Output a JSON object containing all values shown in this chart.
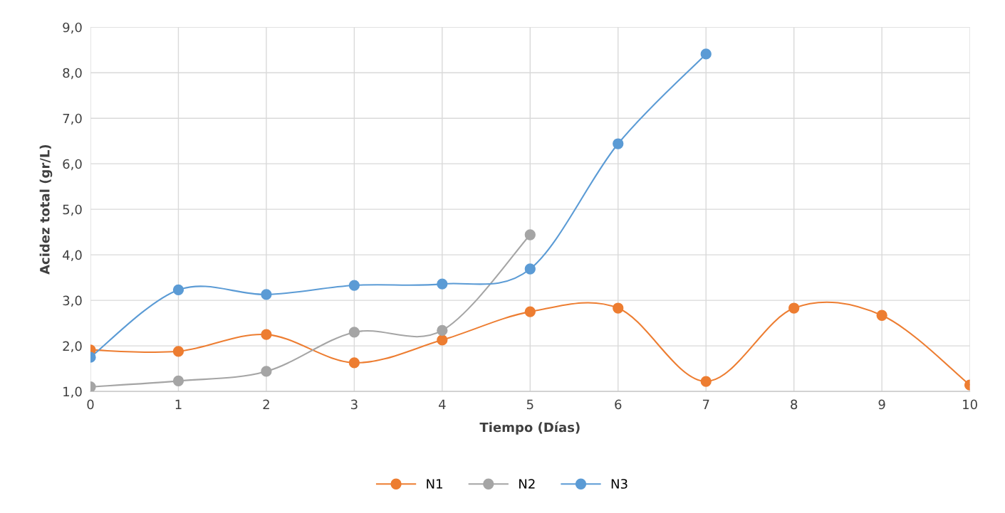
{
  "chart_data": {
    "type": "line",
    "xlabel": "Tiempo (Días)",
    "ylabel": "Acidez total (gr/L)",
    "xlim": [
      0,
      10
    ],
    "xticks": [
      0,
      1,
      2,
      3,
      4,
      5,
      6,
      7,
      8,
      9,
      10
    ],
    "ylim": [
      1.0,
      9.0
    ],
    "yticks": [
      {
        "value": 1.0,
        "label": "1,0"
      },
      {
        "value": 2.0,
        "label": "2,0"
      },
      {
        "value": 3.0,
        "label": "3,0"
      },
      {
        "value": 4.0,
        "label": "4,0"
      },
      {
        "value": 5.0,
        "label": "5,0"
      },
      {
        "value": 6.0,
        "label": "6,0"
      },
      {
        "value": 7.0,
        "label": "7,0"
      },
      {
        "value": 8.0,
        "label": "8,0"
      },
      {
        "value": 9.0,
        "label": "9,0"
      }
    ],
    "grid": true,
    "legend": "bottom",
    "marker": "circle",
    "line_style": "solid",
    "series": [
      {
        "name": "N1",
        "color": "#ed7d31",
        "x": [
          0,
          1,
          2,
          3,
          4,
          5,
          6,
          7,
          8,
          9,
          10
        ],
        "values": [
          1.91,
          1.88,
          2.25,
          1.63,
          2.13,
          2.75,
          2.83,
          1.22,
          2.83,
          2.67,
          1.14
        ]
      },
      {
        "name": "N2",
        "color": "#a5a5a5",
        "x": [
          0,
          1,
          2,
          3,
          4,
          5
        ],
        "values": [
          1.1,
          1.23,
          1.44,
          2.3,
          2.34,
          4.44
        ]
      },
      {
        "name": "N3",
        "color": "#5b9bd5",
        "x": [
          0,
          1,
          2,
          3,
          4,
          5,
          6,
          7
        ],
        "values": [
          1.75,
          3.23,
          3.13,
          3.33,
          3.36,
          3.69,
          6.44,
          8.41
        ]
      }
    ]
  }
}
